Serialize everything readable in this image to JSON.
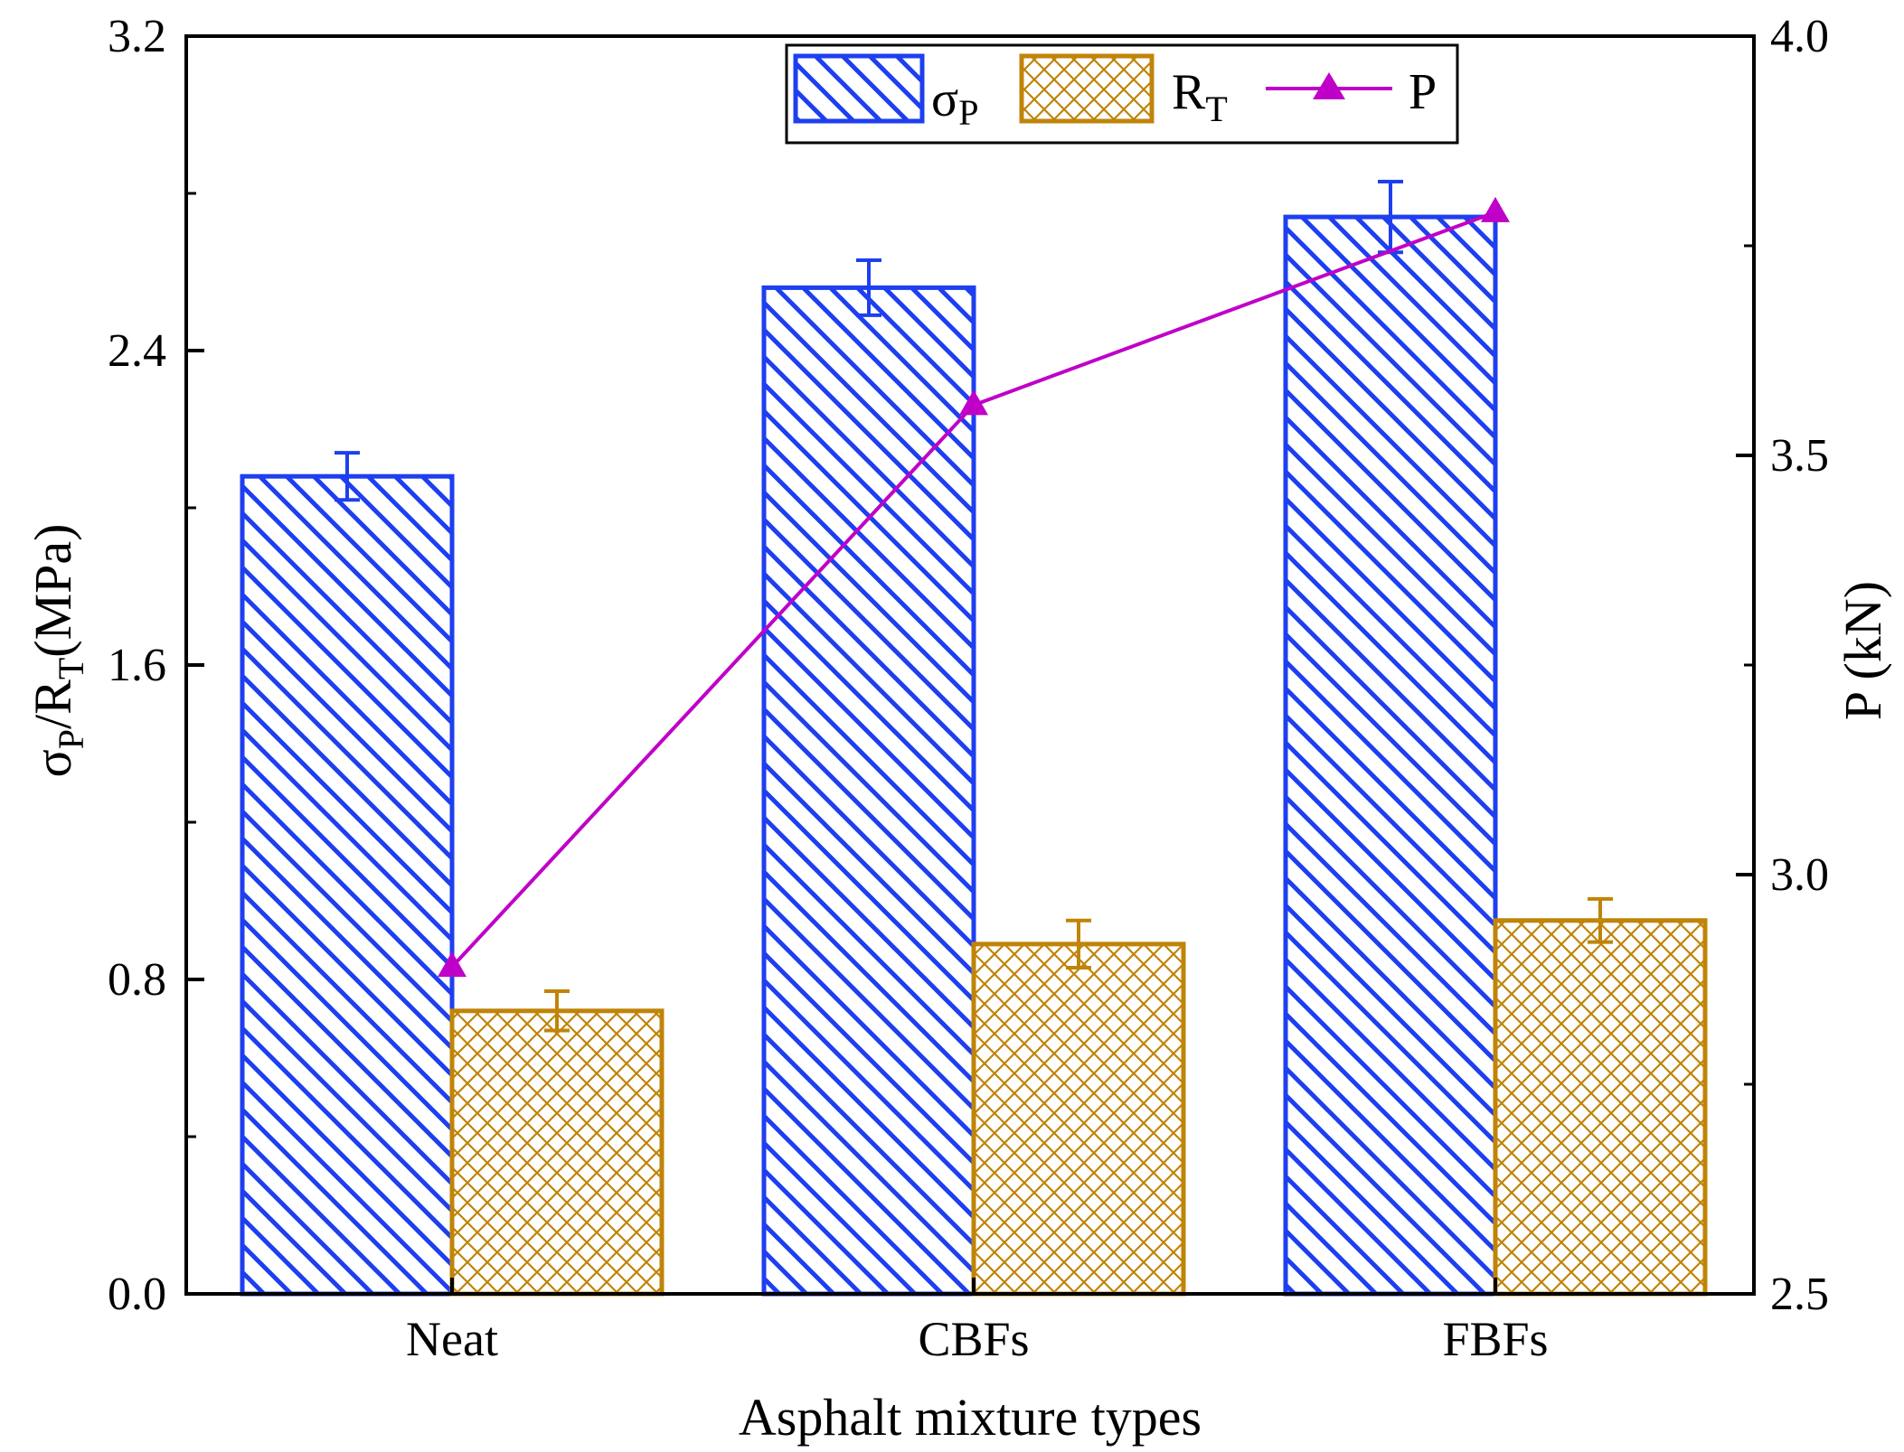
{
  "chart_data": {
    "type": "bar",
    "categories": [
      "Neat",
      "CBFs",
      "FBFs"
    ],
    "series": [
      {
        "name": "σP",
        "legend_main": "σ",
        "legend_sub": "P",
        "axis": "left",
        "values": [
          2.08,
          2.56,
          2.74
        ],
        "errors": [
          0.06,
          0.07,
          0.09
        ],
        "color": "#1e3ff0",
        "pattern": "diagonal"
      },
      {
        "name": "RT",
        "legend_main": "R",
        "legend_sub": "T",
        "axis": "left",
        "values": [
          0.72,
          0.89,
          0.95
        ],
        "errors": [
          0.05,
          0.06,
          0.055
        ],
        "color": "#c08408",
        "pattern": "crosshatch"
      },
      {
        "name": "P",
        "legend_main": "P",
        "axis": "right",
        "type": "line",
        "marker": "triangle",
        "values": [
          2.89,
          3.56,
          3.79
        ],
        "color": "#c000c8"
      }
    ],
    "left_axis": {
      "ylim": [
        0.0,
        3.2
      ],
      "ticks": [
        "0.0",
        "0.8",
        "1.6",
        "2.4",
        "3.2"
      ],
      "tick_values": [
        0.0,
        0.8,
        1.6,
        2.4,
        3.2
      ],
      "minor_values": [
        0.4,
        1.2,
        2.0,
        2.8
      ],
      "title_parts": [
        "σ",
        "P",
        "/R",
        "T",
        "(MPa)"
      ]
    },
    "right_axis": {
      "ylim": [
        2.5,
        4.0
      ],
      "ticks": [
        "2.5",
        "3.0",
        "3.5",
        "4.0"
      ],
      "tick_values": [
        2.5,
        3.0,
        3.5,
        4.0
      ],
      "minor_values": [
        2.75,
        3.25,
        3.75
      ],
      "title": "P (kN)"
    },
    "xlabel": "Asphalt mixture types",
    "legend_position": "top-center"
  }
}
